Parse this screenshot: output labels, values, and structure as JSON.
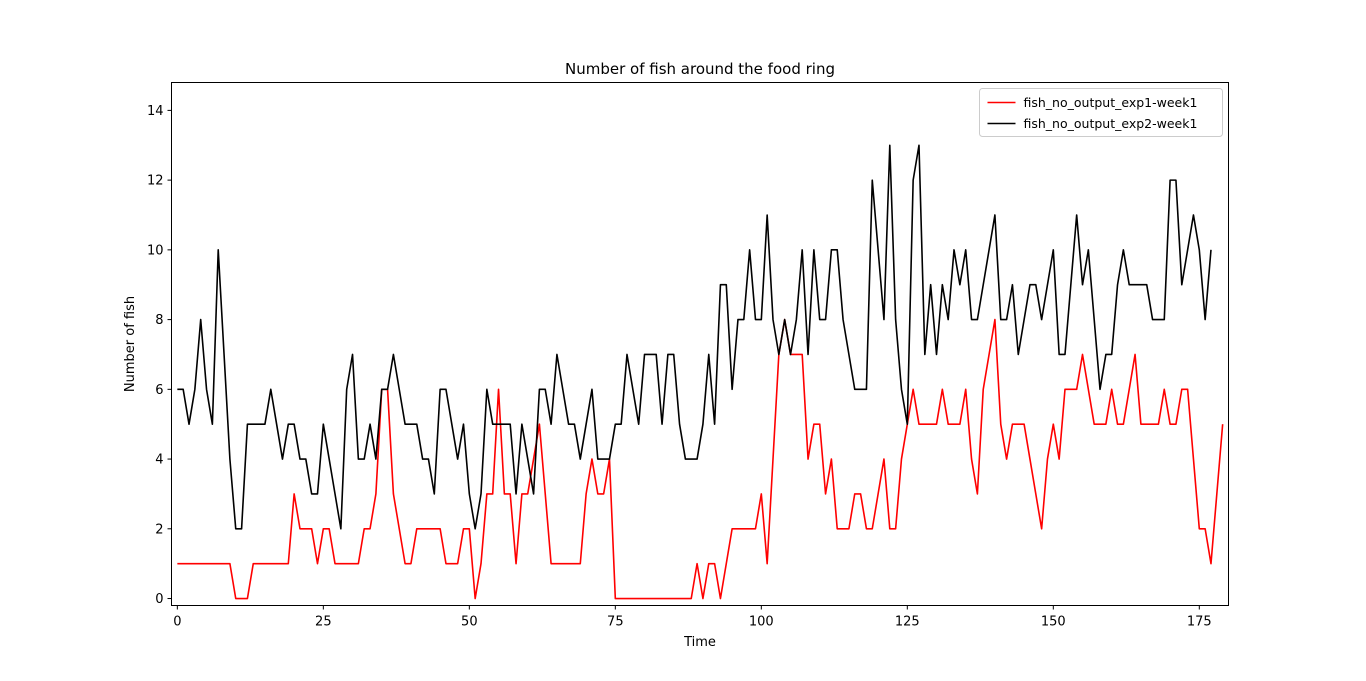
{
  "chart_data": {
    "type": "line",
    "title": "Number of fish around the food ring",
    "xlabel": "Time",
    "ylabel": "Number of fish",
    "xlim": [
      -1,
      180
    ],
    "ylim": [
      -0.2,
      14.8
    ],
    "xticks": [
      0,
      25,
      50,
      75,
      100,
      125,
      150,
      175
    ],
    "yticks": [
      0,
      2,
      4,
      6,
      8,
      10,
      12,
      14
    ],
    "grid": false,
    "legend_position": "top-right",
    "series": [
      {
        "name": "fish_no_output_exp1-week1",
        "color": "#ff0000",
        "values": [
          1,
          1,
          1,
          1,
          1,
          1,
          1,
          1,
          1,
          1,
          0,
          0,
          0,
          1,
          1,
          1,
          1,
          1,
          1,
          1,
          3,
          2,
          2,
          2,
          1,
          2,
          2,
          1,
          1,
          1,
          1,
          1,
          2,
          2,
          3,
          6,
          6,
          3,
          2,
          1,
          1,
          2,
          2,
          2,
          2,
          2,
          1,
          1,
          1,
          2,
          2,
          0,
          1,
          3,
          3,
          6,
          3,
          3,
          1,
          3,
          3,
          4,
          5,
          3,
          1,
          1,
          1,
          1,
          1,
          1,
          3,
          4,
          3,
          3,
          4,
          0,
          0,
          0,
          0,
          0,
          0,
          0,
          0,
          0,
          0,
          0,
          0,
          0,
          0,
          1,
          0,
          1,
          1,
          0,
          1,
          2,
          2,
          2,
          2,
          2,
          3,
          1,
          4,
          7,
          8,
          7,
          7,
          7,
          4,
          5,
          5,
          3,
          4,
          2,
          2,
          2,
          3,
          3,
          2,
          2,
          3,
          4,
          2,
          2,
          4,
          5,
          6,
          5,
          5,
          5,
          5,
          6,
          5,
          5,
          5,
          6,
          4,
          3,
          6,
          7,
          8,
          5,
          4,
          5,
          5,
          5,
          4,
          3,
          2,
          4,
          5,
          4,
          6,
          6,
          6,
          7,
          6,
          5,
          5,
          5,
          6,
          5,
          5,
          6,
          7,
          5,
          5,
          5,
          5,
          6,
          5,
          5,
          6,
          6,
          4,
          2,
          2,
          1,
          3,
          5
        ]
      },
      {
        "name": "fish_no_output_exp2-week1",
        "color": "#000000",
        "values": [
          6,
          6,
          5,
          6,
          8,
          6,
          5,
          10,
          7,
          4,
          2,
          2,
          5,
          5,
          5,
          5,
          6,
          5,
          4,
          5,
          5,
          4,
          4,
          3,
          3,
          5,
          4,
          3,
          2,
          6,
          7,
          4,
          4,
          5,
          4,
          6,
          6,
          7,
          6,
          5,
          5,
          5,
          4,
          4,
          3,
          6,
          6,
          5,
          4,
          5,
          3,
          2,
          3,
          6,
          5,
          5,
          5,
          5,
          3,
          5,
          4,
          3,
          6,
          6,
          5,
          7,
          6,
          5,
          5,
          4,
          5,
          6,
          4,
          4,
          4,
          5,
          5,
          7,
          6,
          5,
          7,
          7,
          7,
          5,
          7,
          7,
          5,
          4,
          4,
          4,
          5,
          7,
          5,
          9,
          9,
          6,
          8,
          8,
          10,
          8,
          8,
          11,
          8,
          7,
          8,
          7,
          8,
          10,
          7,
          10,
          8,
          8,
          10,
          10,
          8,
          7,
          6,
          6,
          6,
          12,
          10,
          8,
          13,
          8,
          6,
          5,
          12,
          13,
          7,
          9,
          7,
          9,
          8,
          10,
          9,
          10,
          8,
          8,
          9,
          10,
          11,
          8,
          8,
          9,
          7,
          8,
          9,
          9,
          8,
          9,
          10,
          7,
          7,
          9,
          11,
          9,
          10,
          8,
          6,
          7,
          7,
          9,
          10,
          9,
          9,
          9,
          9,
          8,
          8,
          8,
          12,
          12,
          9,
          10,
          11,
          10,
          8,
          10
        ]
      }
    ]
  }
}
